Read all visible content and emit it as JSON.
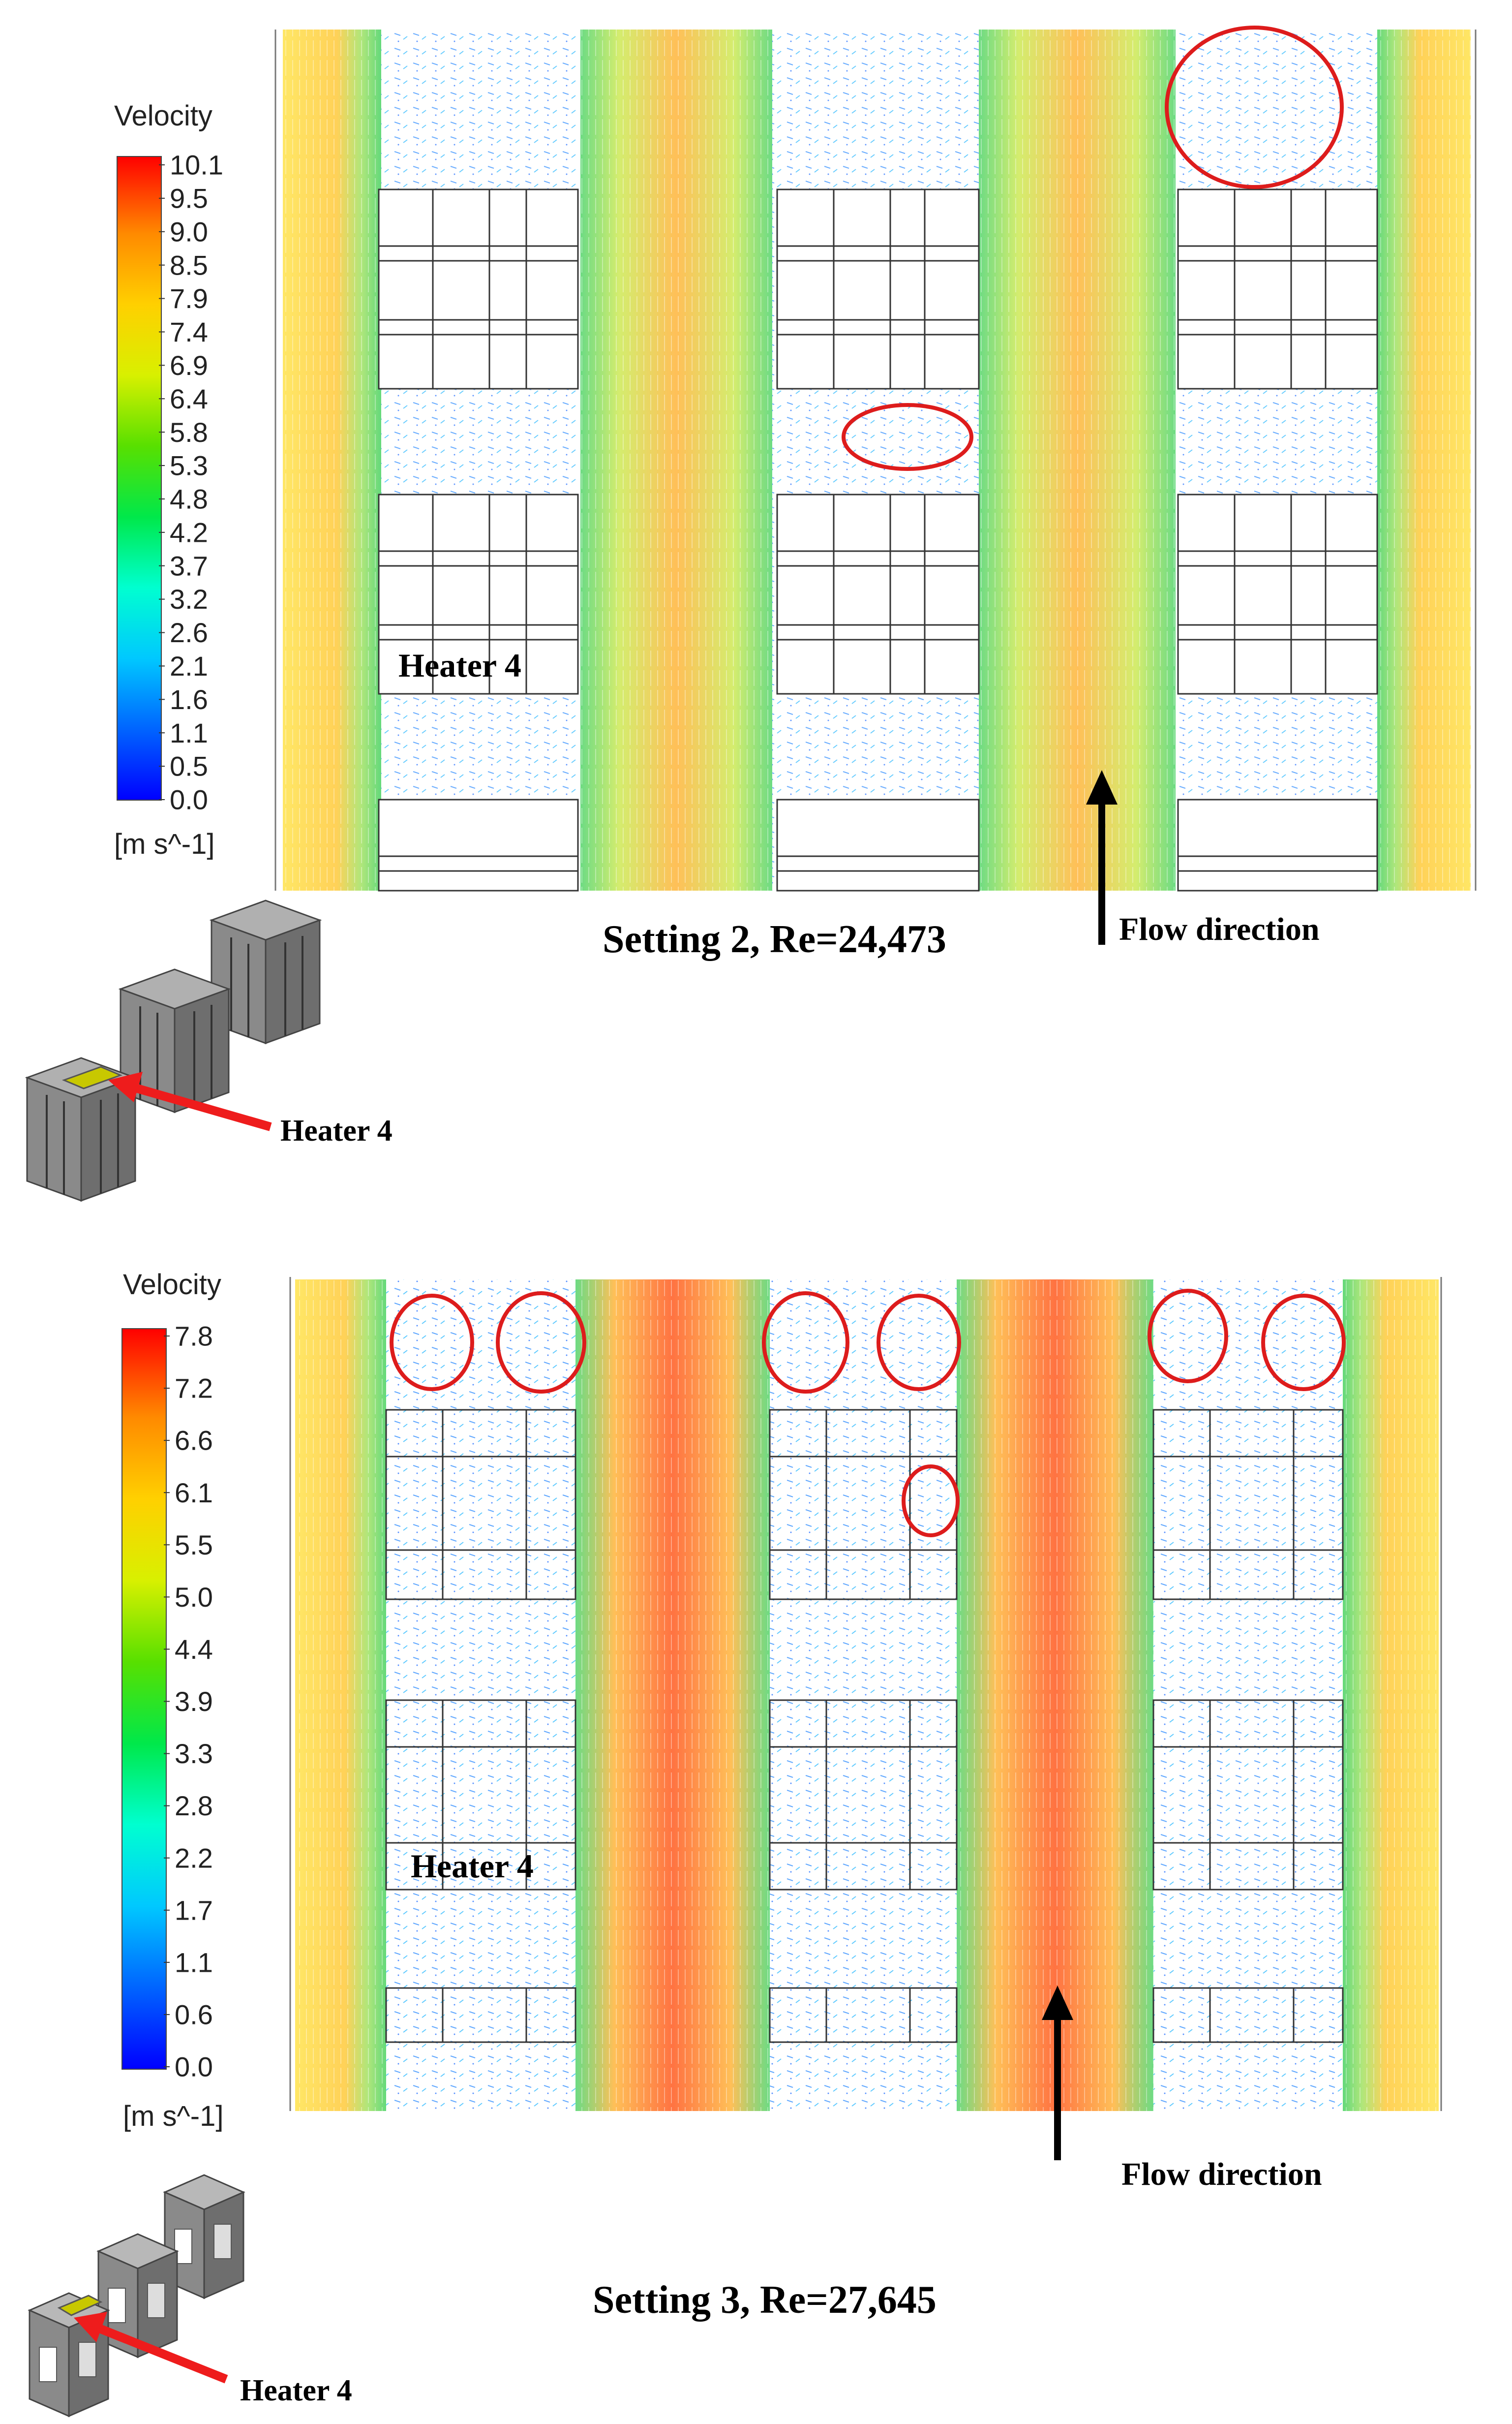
{
  "panels": [
    {
      "legend_title": "Velocity",
      "ticks": [
        "10.1",
        "9.5",
        "9.0",
        "8.5",
        "7.9",
        "7.4",
        "6.9",
        "6.4",
        "5.8",
        "5.3",
        "4.8",
        "4.2",
        "3.7",
        "3.2",
        "2.6",
        "2.1",
        "1.6",
        "1.1",
        "0.5",
        "0.0"
      ],
      "unit": "[m s^-1]",
      "heater_field_label": "Heater 4",
      "flow_label": "Flow direction",
      "caption": "Setting 2,  Re=24,473",
      "iso_heater_label": "Heater 4"
    },
    {
      "legend_title": "Velocity",
      "ticks": [
        "7.8",
        "7.2",
        "6.6",
        "6.1",
        "5.5",
        "5.0",
        "4.4",
        "3.9",
        "3.3",
        "2.8",
        "2.2",
        "1.7",
        "1.1",
        "0.6",
        "0.0"
      ],
      "unit": "[m s^-1]",
      "heater_field_label": "Heater 4",
      "flow_label": "Flow direction",
      "caption": "Setting 3,  Re=27,645",
      "iso_heater_label": "Heater 4"
    }
  ],
  "colors": {
    "colormap": [
      "#0000ff",
      "#00a5ff",
      "#00ffff",
      "#00e05a",
      "#30d000",
      "#c8f000",
      "#ffe000",
      "#ffa000",
      "#ff6000",
      "#ff0000"
    ],
    "highlight_circle": "#dd1c1c",
    "heater_arrow": "#ee1c1c",
    "heater_block": "#c8c800",
    "block_grey": "#8a8a8a"
  }
}
